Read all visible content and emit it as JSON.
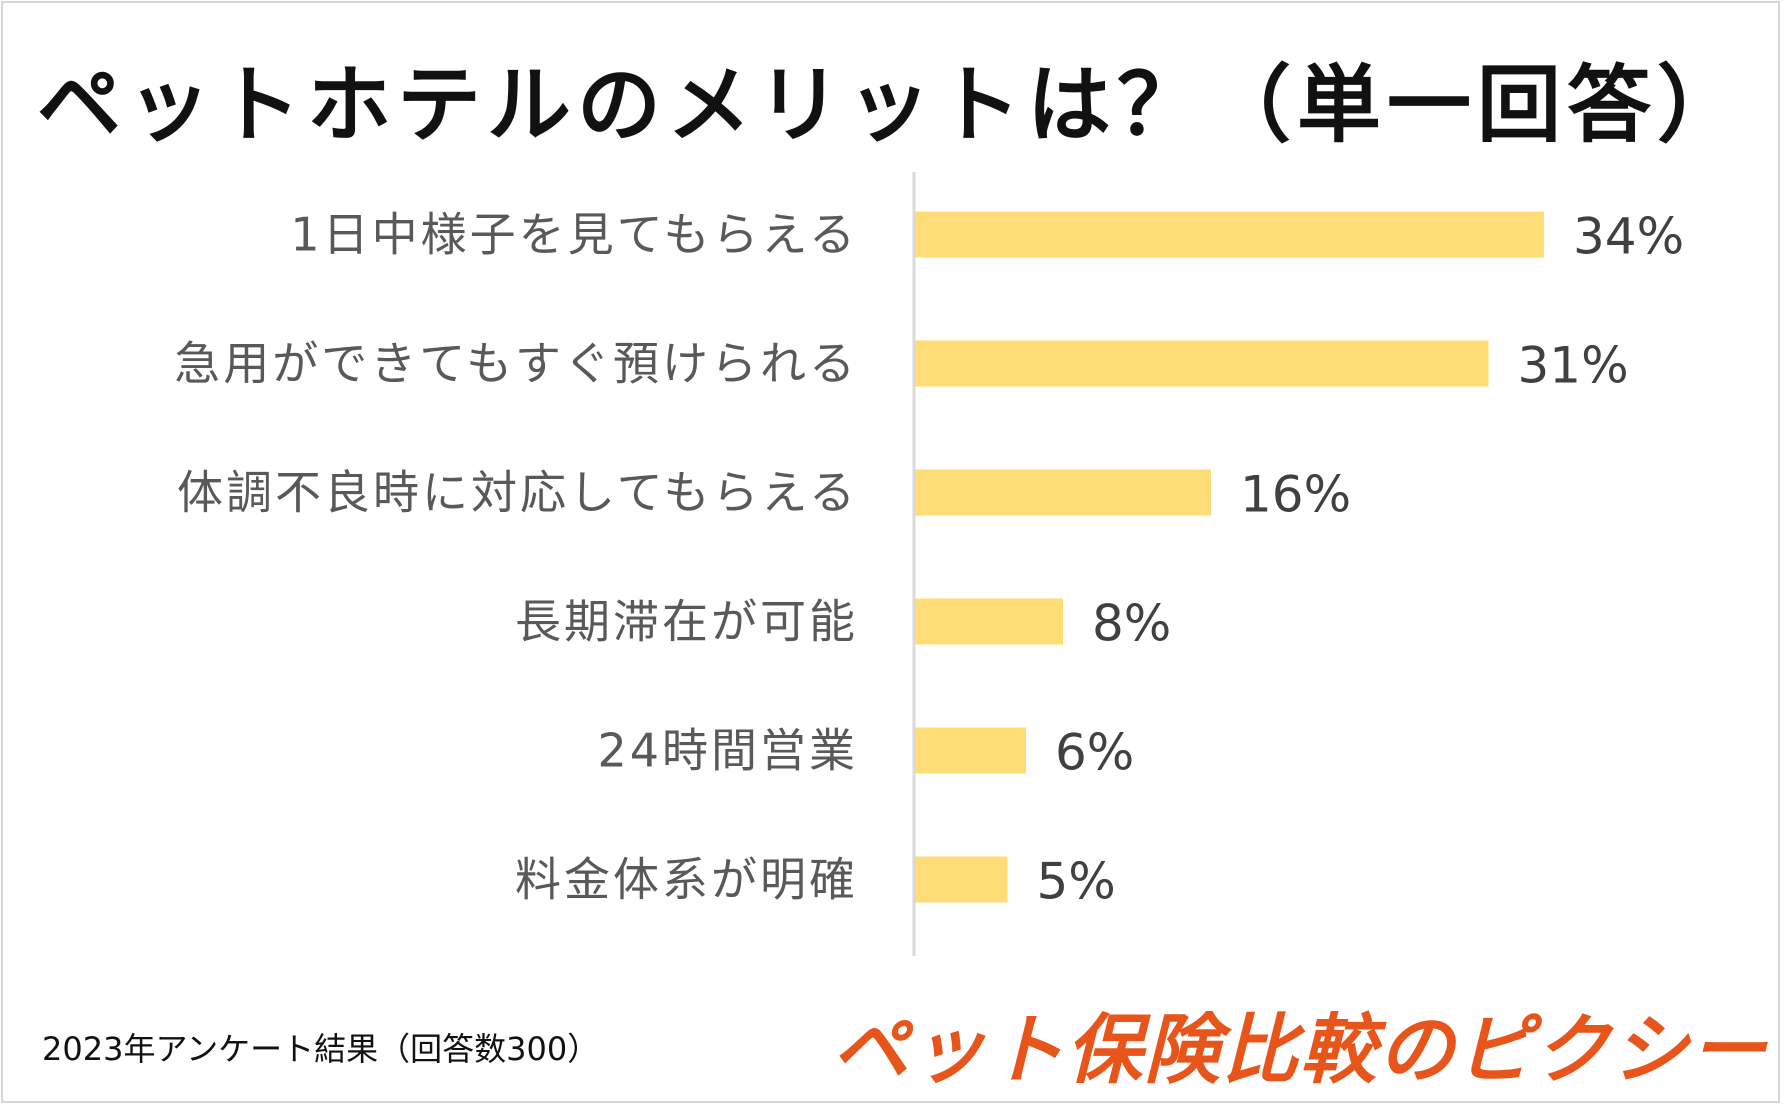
{
  "colors": {
    "bar": "#FFDD76",
    "brand": "#E8551A",
    "axis": "#D9D9D9"
  },
  "chart_data": {
    "type": "bar",
    "orientation": "horizontal",
    "title": "ペットホテルのメリットは？（単一回答）",
    "categories": [
      "1日中様子を見てもらえる",
      "急用ができてもすぐ預けられる",
      "体調不良時に対応してもらえる",
      "長期滞在が可能",
      "24時間営業",
      "料金体系が明確"
    ],
    "values": [
      34,
      31,
      16,
      8,
      6,
      5
    ],
    "value_labels": [
      "34%",
      "31%",
      "16%",
      "8%",
      "6%",
      "5%"
    ],
    "unit": "%",
    "xlim": [
      0,
      40
    ],
    "grid": false,
    "legend": "none"
  },
  "footer": {
    "note": "2023年アンケート結果（回答数300）",
    "brand": "ペット保険比較のピクシー"
  }
}
